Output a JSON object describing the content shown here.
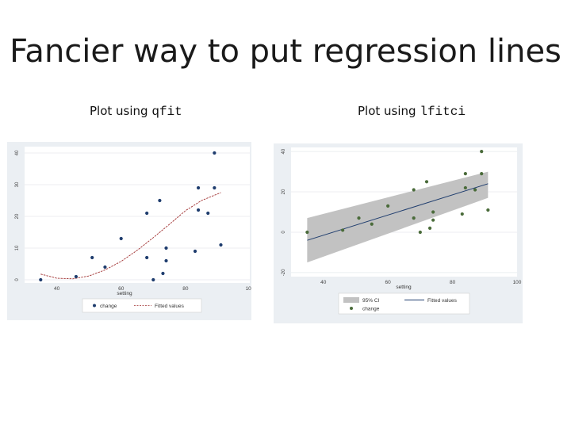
{
  "slide": {
    "title": "Fancier way to put regression lines",
    "left_caption_prefix": "Plot using",
    "left_caption_cmd": "qfit",
    "right_caption_prefix": "Plot using",
    "right_caption_cmd": "lfitci"
  },
  "chart_data": [
    {
      "type": "scatter",
      "title": "",
      "xlabel": "setting",
      "ylabel": "",
      "xlim": [
        30,
        100
      ],
      "ylim": [
        -1,
        42
      ],
      "xticks": [
        40,
        60,
        80,
        100
      ],
      "yticks": [
        0,
        10,
        20,
        30,
        40
      ],
      "grid": true,
      "legend_position": "bottom",
      "series": [
        {
          "name": "change",
          "kind": "points",
          "color": "#1f3d6e",
          "points": [
            [
              35,
              0
            ],
            [
              46,
              1
            ],
            [
              51,
              7
            ],
            [
              55,
              4
            ],
            [
              60,
              13
            ],
            [
              68,
              21
            ],
            [
              68,
              7
            ],
            [
              70,
              0
            ],
            [
              72,
              25
            ],
            [
              73,
              2
            ],
            [
              74,
              10
            ],
            [
              74,
              6
            ],
            [
              83,
              9
            ],
            [
              84,
              29
            ],
            [
              84,
              22
            ],
            [
              87,
              21
            ],
            [
              89,
              40
            ],
            [
              89,
              29
            ],
            [
              91,
              11
            ]
          ]
        },
        {
          "name": "Fitted values",
          "kind": "quadratic-fit",
          "color": "#a03030",
          "points": [
            [
              35,
              1.8
            ],
            [
              40,
              0.5
            ],
            [
              45,
              0.3
            ],
            [
              50,
              1.2
            ],
            [
              55,
              3.1
            ],
            [
              60,
              5.8
            ],
            [
              65,
              9.3
            ],
            [
              70,
              13.3
            ],
            [
              75,
              17.5
            ],
            [
              80,
              21.8
            ],
            [
              85,
              25.0
            ],
            [
              91,
              27.5
            ]
          ]
        }
      ]
    },
    {
      "type": "line",
      "title": "",
      "xlabel": "setting",
      "ylabel": "",
      "xlim": [
        30,
        100
      ],
      "ylim": [
        -22,
        42
      ],
      "xticks": [
        40,
        60,
        80,
        100
      ],
      "yticks": [
        -20,
        0,
        20,
        40
      ],
      "grid": true,
      "legend_position": "bottom",
      "series": [
        {
          "name": "95% CI",
          "kind": "band",
          "color": "#c2c2c2",
          "x": [
            35,
            91
          ],
          "lower": [
            -15,
            17
          ],
          "upper": [
            7,
            30
          ]
        },
        {
          "name": "Fitted values",
          "kind": "linear-fit",
          "color": "#1f3d6e",
          "points": [
            [
              35,
              -4
            ],
            [
              91,
              24
            ]
          ]
        },
        {
          "name": "change",
          "kind": "points",
          "color": "#4a6b3a",
          "points": [
            [
              35,
              0
            ],
            [
              46,
              1
            ],
            [
              51,
              7
            ],
            [
              55,
              4
            ],
            [
              60,
              13
            ],
            [
              68,
              21
            ],
            [
              68,
              7
            ],
            [
              70,
              0
            ],
            [
              72,
              25
            ],
            [
              73,
              2
            ],
            [
              74,
              10
            ],
            [
              74,
              6
            ],
            [
              83,
              9
            ],
            [
              84,
              29
            ],
            [
              84,
              22
            ],
            [
              87,
              21
            ],
            [
              89,
              40
            ],
            [
              89,
              29
            ],
            [
              91,
              11
            ]
          ]
        }
      ]
    }
  ]
}
